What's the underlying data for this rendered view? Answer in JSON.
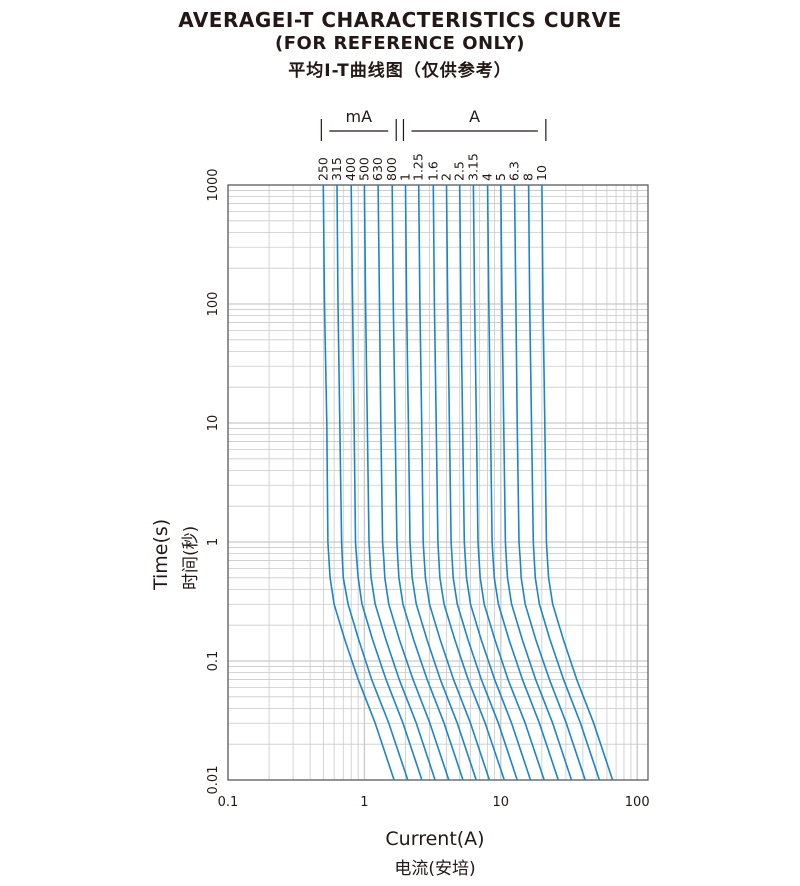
{
  "title": {
    "line1": "AVERAGEI-T CHARACTERISTICS CURVE",
    "line2": "(FOR REFERENCE ONLY)",
    "line3": "平均I-T曲线图（仅供参考）"
  },
  "axes": {
    "xlabel": "Current(A)",
    "xlabel_cn": "电流(安培)",
    "ylabel": "Time(s)",
    "ylabel_cn": "时间(秒)"
  },
  "colors": {
    "curve": "#1a86c7",
    "grid": "#c9c9c9",
    "text": "#231815"
  },
  "chart_data": {
    "type": "line",
    "xscale": "log",
    "yscale": "log",
    "xlim": [
      0.1,
      120
    ],
    "ylim": [
      0.01,
      1000
    ],
    "xticks": [
      "0.1",
      "1",
      "10",
      "100"
    ],
    "yticks": [
      "0.01",
      "0.1",
      "1",
      "10",
      "100",
      "1000"
    ],
    "grid": true,
    "rating_groups": [
      {
        "label": "mA",
        "ratings": [
          "250",
          "315",
          "400",
          "500",
          "630",
          "800"
        ]
      },
      {
        "label": "A",
        "ratings": [
          "1",
          "1.25",
          "1.6",
          "2",
          "2.5",
          "3.15",
          "4",
          "5",
          "6.3",
          "8",
          "10"
        ]
      }
    ],
    "series": [
      {
        "name": "250",
        "x": [
          0.5,
          0.51,
          0.53,
          0.54,
          0.55,
          0.56,
          0.6,
          0.72,
          0.9,
          1.2,
          1.65
        ],
        "y": [
          1000,
          100,
          10,
          1,
          0.7,
          0.5,
          0.3,
          0.15,
          0.07,
          0.03,
          0.01
        ]
      },
      {
        "name": "315",
        "x": [
          0.63,
          0.64,
          0.66,
          0.68,
          0.69,
          0.7,
          0.76,
          0.91,
          1.13,
          1.51,
          2.08
        ],
        "y": [
          1000,
          100,
          10,
          1,
          0.7,
          0.5,
          0.3,
          0.15,
          0.07,
          0.03,
          0.01
        ]
      },
      {
        "name": "400",
        "x": [
          0.8,
          0.82,
          0.84,
          0.86,
          0.88,
          0.9,
          0.96,
          1.15,
          1.44,
          1.92,
          2.64
        ],
        "y": [
          1000,
          100,
          10,
          1,
          0.7,
          0.5,
          0.3,
          0.15,
          0.07,
          0.03,
          0.01
        ]
      },
      {
        "name": "500",
        "x": [
          1.0,
          1.02,
          1.05,
          1.08,
          1.1,
          1.12,
          1.2,
          1.44,
          1.8,
          2.4,
          3.3
        ],
        "y": [
          1000,
          100,
          10,
          1,
          0.7,
          0.5,
          0.3,
          0.15,
          0.07,
          0.03,
          0.01
        ]
      },
      {
        "name": "630",
        "x": [
          1.26,
          1.29,
          1.32,
          1.36,
          1.39,
          1.41,
          1.51,
          1.81,
          2.27,
          3.02,
          4.16
        ],
        "y": [
          1000,
          100,
          10,
          1,
          0.7,
          0.5,
          0.3,
          0.15,
          0.07,
          0.03,
          0.01
        ]
      },
      {
        "name": "800",
        "x": [
          1.6,
          1.63,
          1.68,
          1.73,
          1.76,
          1.79,
          1.92,
          2.3,
          2.88,
          3.84,
          5.28
        ],
        "y": [
          1000,
          100,
          10,
          1,
          0.7,
          0.5,
          0.3,
          0.15,
          0.07,
          0.03,
          0.01
        ]
      },
      {
        "name": "1",
        "x": [
          2.0,
          2.04,
          2.1,
          2.16,
          2.2,
          2.24,
          2.4,
          2.88,
          3.6,
          4.8,
          6.6
        ],
        "y": [
          1000,
          100,
          10,
          1,
          0.7,
          0.5,
          0.3,
          0.15,
          0.07,
          0.03,
          0.01
        ]
      },
      {
        "name": "1.25",
        "x": [
          2.5,
          2.55,
          2.63,
          2.7,
          2.75,
          2.8,
          3.0,
          3.6,
          4.5,
          6.0,
          8.25
        ],
        "y": [
          1000,
          100,
          10,
          1,
          0.7,
          0.5,
          0.3,
          0.15,
          0.07,
          0.03,
          0.01
        ]
      },
      {
        "name": "1.6",
        "x": [
          3.2,
          3.26,
          3.36,
          3.46,
          3.52,
          3.58,
          3.84,
          4.61,
          5.76,
          7.68,
          10.6
        ],
        "y": [
          1000,
          100,
          10,
          1,
          0.7,
          0.5,
          0.3,
          0.15,
          0.07,
          0.03,
          0.01
        ]
      },
      {
        "name": "2",
        "x": [
          4.0,
          4.08,
          4.2,
          4.32,
          4.4,
          4.48,
          4.8,
          5.76,
          7.2,
          9.6,
          13.2
        ],
        "y": [
          1000,
          100,
          10,
          1,
          0.7,
          0.5,
          0.3,
          0.15,
          0.07,
          0.03,
          0.01
        ]
      },
      {
        "name": "2.5",
        "x": [
          5.0,
          5.1,
          5.25,
          5.4,
          5.5,
          5.6,
          6.0,
          7.2,
          9.0,
          12.0,
          16.5
        ],
        "y": [
          1000,
          100,
          10,
          1,
          0.7,
          0.5,
          0.3,
          0.15,
          0.07,
          0.03,
          0.01
        ]
      },
      {
        "name": "3.15",
        "x": [
          6.3,
          6.43,
          6.62,
          6.8,
          6.93,
          7.06,
          7.56,
          9.07,
          11.3,
          15.1,
          20.8
        ],
        "y": [
          1000,
          100,
          10,
          1,
          0.7,
          0.5,
          0.3,
          0.15,
          0.07,
          0.03,
          0.01
        ]
      },
      {
        "name": "4",
        "x": [
          8.0,
          8.16,
          8.4,
          8.64,
          8.8,
          8.96,
          9.6,
          11.5,
          14.4,
          19.2,
          26.4
        ],
        "y": [
          1000,
          100,
          10,
          1,
          0.7,
          0.5,
          0.3,
          0.15,
          0.07,
          0.03,
          0.01
        ]
      },
      {
        "name": "5",
        "x": [
          10.0,
          10.2,
          10.5,
          10.8,
          11.0,
          11.2,
          12.0,
          14.4,
          18.0,
          24.0,
          33.0
        ],
        "y": [
          1000,
          100,
          10,
          1,
          0.7,
          0.5,
          0.3,
          0.15,
          0.07,
          0.03,
          0.01
        ]
      },
      {
        "name": "6.3",
        "x": [
          12.6,
          12.9,
          13.2,
          13.6,
          13.9,
          14.1,
          15.1,
          18.1,
          22.7,
          30.2,
          41.6
        ],
        "y": [
          1000,
          100,
          10,
          1,
          0.7,
          0.5,
          0.3,
          0.15,
          0.07,
          0.03,
          0.01
        ]
      },
      {
        "name": "8",
        "x": [
          16.0,
          16.3,
          16.8,
          17.3,
          17.6,
          17.9,
          19.2,
          23.0,
          28.8,
          38.4,
          52.8
        ],
        "y": [
          1000,
          100,
          10,
          1,
          0.7,
          0.5,
          0.3,
          0.15,
          0.07,
          0.03,
          0.01
        ]
      },
      {
        "name": "10",
        "x": [
          20.0,
          20.4,
          21.0,
          21.6,
          22.0,
          22.4,
          24.0,
          28.8,
          36.0,
          48.0,
          66.0
        ],
        "y": [
          1000,
          100,
          10,
          1,
          0.7,
          0.5,
          0.3,
          0.15,
          0.07,
          0.03,
          0.01
        ]
      }
    ]
  }
}
